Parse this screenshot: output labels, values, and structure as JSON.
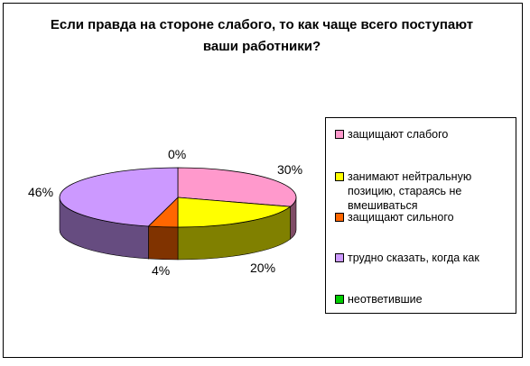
{
  "chart_data": {
    "type": "pie",
    "title": "Если правда на стороне слабого, то как чаще всего поступают ваши работники?",
    "series": [
      {
        "name": "защищают слабого",
        "value": 30,
        "label": "30%",
        "color": "#FF99CC",
        "side": "#7F4C66"
      },
      {
        "name": "занимают нейтральную позицию, стараясь не вмешиваться",
        "value": 20,
        "label": "20%",
        "color": "#FFFF00",
        "side": "#808000"
      },
      {
        "name": "защищают сильного",
        "value": 4,
        "label": "4%",
        "color": "#FF6600",
        "side": "#803300"
      },
      {
        "name": "трудно сказать, когда как",
        "value": 46,
        "label": "46%",
        "color": "#CC99FF",
        "side": "#664C80"
      },
      {
        "name": "неответившие",
        "value": 0,
        "label": "0%",
        "color": "#00CC00",
        "side": "#006600"
      }
    ],
    "legend": {
      "placement": "right"
    }
  }
}
